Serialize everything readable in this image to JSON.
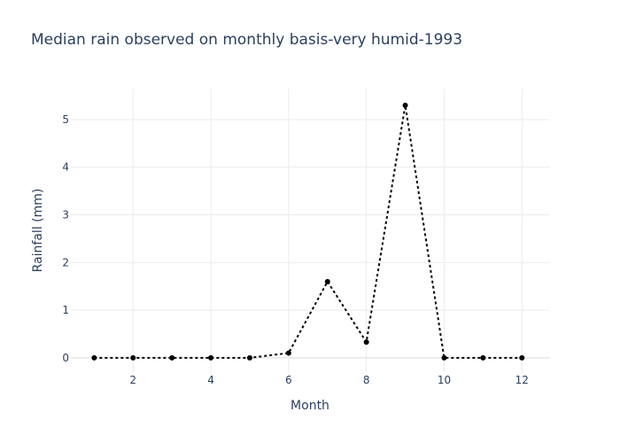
{
  "chart_data": {
    "type": "line",
    "title": "Median rain observed on monthly basis-very humid-1993",
    "xlabel": "Month",
    "ylabel": "Rainfall (mm)",
    "xlim": [
      0.4,
      12.7
    ],
    "ylim": [
      -0.3,
      5.65
    ],
    "x_ticks": [
      2,
      4,
      6,
      8,
      10,
      12
    ],
    "y_ticks": [
      0,
      1,
      2,
      3,
      4,
      5
    ],
    "grid": true,
    "line_style": "dotted",
    "colors": {
      "line": "#000000",
      "marker": "#000000",
      "text": "#2a3f5f",
      "grid": "#ebebeb"
    },
    "series": [
      {
        "x": [
          1,
          2,
          3,
          4,
          5,
          6,
          7,
          8,
          9,
          10,
          11,
          12
        ],
        "values": [
          0,
          0,
          0,
          0,
          0,
          0.1,
          1.6,
          0.33,
          5.3,
          0,
          0,
          0
        ]
      }
    ]
  }
}
